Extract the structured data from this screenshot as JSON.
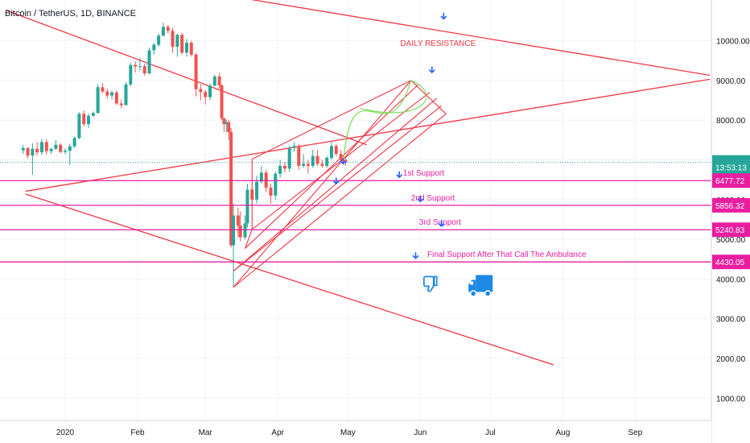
{
  "header": {
    "title": "Bitcoin / TetherUS, 1D, BINANCE"
  },
  "chart_data": {
    "type": "candlestick",
    "symbol": "Bitcoin / TetherUS",
    "interval": "1D",
    "exchange": "BINANCE",
    "y_axis": {
      "scale": "linear",
      "ticks": [
        1000,
        2000,
        3000,
        4000,
        5000,
        6000,
        7000,
        8000,
        9000,
        10000
      ],
      "tick_labels": [
        "1000.00",
        "2000.00",
        "3000.00",
        "4000.00",
        "5000.00",
        "6000.00",
        "7000.00",
        "8000.00",
        "9000.00",
        "10000.00"
      ]
    },
    "x_axis": {
      "ticks": [
        "2020-01-01",
        "2020-02-01",
        "2020-03-01",
        "2020-04-01",
        "2020-05-01",
        "2020-06-01",
        "2020-07-01",
        "2020-08-01",
        "2020-09-01"
      ],
      "tick_labels": [
        "2020",
        "Feb",
        "Mar",
        "Apr",
        "May",
        "Jun",
        "Jul",
        "Aug",
        "Sep"
      ]
    },
    "current_price": {
      "value": 6936.65,
      "label": "6936.65",
      "countdown": "13:53:13",
      "color": "#26a69a"
    },
    "candles": [
      [
        "2019-12-14",
        7240,
        7380,
        7150,
        7300
      ],
      [
        "2019-12-16",
        7300,
        7320,
        7040,
        7110
      ],
      [
        "2019-12-18",
        7110,
        7420,
        6620,
        7280
      ],
      [
        "2019-12-20",
        7280,
        7450,
        7110,
        7190
      ],
      [
        "2019-12-22",
        7190,
        7520,
        7120,
        7450
      ],
      [
        "2019-12-24",
        7450,
        7520,
        7130,
        7220
      ],
      [
        "2019-12-26",
        7220,
        7300,
        7150,
        7280
      ],
      [
        "2019-12-28",
        7280,
        7500,
        7250,
        7380
      ],
      [
        "2019-12-30",
        7380,
        7420,
        7170,
        7200
      ],
      [
        "2020-01-01",
        7200,
        7290,
        7140,
        7230
      ],
      [
        "2020-01-03",
        7230,
        7410,
        6870,
        7340
      ],
      [
        "2020-01-05",
        7340,
        7590,
        7300,
        7550
      ],
      [
        "2020-01-07",
        7550,
        8200,
        7520,
        8160
      ],
      [
        "2020-01-09",
        8160,
        8240,
        7840,
        7900
      ],
      [
        "2020-01-11",
        7900,
        8170,
        7800,
        8110
      ],
      [
        "2020-01-13",
        8110,
        8220,
        8080,
        8180
      ],
      [
        "2020-01-15",
        8180,
        8900,
        8170,
        8830
      ],
      [
        "2020-01-17",
        8830,
        8930,
        8680,
        8720
      ],
      [
        "2020-01-19",
        8720,
        8800,
        8540,
        8620
      ],
      [
        "2020-01-21",
        8620,
        8740,
        8520,
        8700
      ],
      [
        "2020-01-23",
        8700,
        8750,
        8380,
        8420
      ],
      [
        "2020-01-25",
        8420,
        8520,
        8300,
        8380
      ],
      [
        "2020-01-27",
        8380,
        8950,
        8370,
        8900
      ],
      [
        "2020-01-29",
        8900,
        9450,
        8850,
        9390
      ],
      [
        "2020-01-31",
        9390,
        9480,
        9200,
        9350
      ],
      [
        "2020-02-02",
        9350,
        9570,
        9250,
        9360
      ],
      [
        "2020-02-04",
        9360,
        9420,
        9120,
        9180
      ],
      [
        "2020-02-06",
        9180,
        9830,
        9150,
        9760
      ],
      [
        "2020-02-08",
        9760,
        9950,
        9650,
        9900
      ],
      [
        "2020-02-10",
        9900,
        10180,
        9850,
        10130
      ],
      [
        "2020-02-12",
        10130,
        10450,
        10100,
        10350
      ],
      [
        "2020-02-14",
        10350,
        10400,
        10180,
        10250
      ],
      [
        "2020-02-16",
        10250,
        10320,
        9700,
        9850
      ],
      [
        "2020-02-18",
        9850,
        10180,
        9600,
        10150
      ],
      [
        "2020-02-20",
        10150,
        10200,
        9650,
        9700
      ],
      [
        "2020-02-22",
        9700,
        10050,
        9600,
        9950
      ],
      [
        "2020-02-24",
        9950,
        10000,
        9600,
        9650
      ],
      [
        "2020-02-26",
        9650,
        9700,
        8600,
        8780
      ],
      [
        "2020-02-28",
        8780,
        8900,
        8500,
        8710
      ],
      [
        "2020-03-01",
        8710,
        8760,
        8400,
        8580
      ],
      [
        "2020-03-03",
        8580,
        8920,
        8500,
        8870
      ],
      [
        "2020-03-05",
        8870,
        9150,
        8850,
        9100
      ],
      [
        "2020-03-07",
        9100,
        9190,
        8800,
        8880
      ],
      [
        "2020-03-08",
        8880,
        8900,
        8000,
        8050
      ],
      [
        "2020-03-09",
        8050,
        8060,
        7700,
        7900
      ],
      [
        "2020-03-10",
        7900,
        8000,
        7700,
        7950
      ],
      [
        "2020-03-11",
        7950,
        8000,
        7500,
        7700
      ],
      [
        "2020-03-12",
        7700,
        7800,
        4800,
        4850
      ],
      [
        "2020-03-13",
        4850,
        5900,
        3800,
        5600
      ],
      [
        "2020-03-15",
        5600,
        5800,
        5050,
        5350
      ],
      [
        "2020-03-16",
        5350,
        5700,
        4950,
        5050
      ],
      [
        "2020-03-18",
        5050,
        5600,
        5000,
        5400
      ],
      [
        "2020-03-19",
        5400,
        6400,
        5300,
        6250
      ],
      [
        "2020-03-21",
        6250,
        6400,
        5800,
        6000
      ],
      [
        "2020-03-23",
        6000,
        6600,
        5900,
        6450
      ],
      [
        "2020-03-25",
        6450,
        6850,
        6400,
        6680
      ],
      [
        "2020-03-27",
        6680,
        6750,
        6200,
        6300
      ],
      [
        "2020-03-29",
        6300,
        6400,
        5900,
        6100
      ],
      [
        "2020-03-31",
        6100,
        6700,
        6000,
        6650
      ],
      [
        "2020-04-02",
        6650,
        7000,
        6550,
        6850
      ],
      [
        "2020-04-04",
        6850,
        6950,
        6680,
        6780
      ],
      [
        "2020-04-06",
        6780,
        7350,
        6700,
        7300
      ],
      [
        "2020-04-08",
        7300,
        7450,
        7200,
        7350
      ],
      [
        "2020-04-10",
        7350,
        7400,
        6750,
        6850
      ],
      [
        "2020-04-12",
        6850,
        7150,
        6800,
        6900
      ],
      [
        "2020-04-14",
        6900,
        7000,
        6650,
        6850
      ],
      [
        "2020-04-16",
        6850,
        7250,
        6800,
        7100
      ],
      [
        "2020-04-18",
        7100,
        7250,
        6850,
        6900
      ],
      [
        "2020-04-20",
        6900,
        7000,
        6800,
        6850
      ],
      [
        "2020-04-22",
        6850,
        7100,
        6800,
        7050
      ],
      [
        "2020-04-24",
        7050,
        7450,
        7000,
        7350
      ],
      [
        "2020-04-26",
        7350,
        7400,
        7100,
        7150
      ],
      [
        "2020-04-28",
        7150,
        7250,
        6950,
        7000
      ],
      [
        "2020-04-30",
        7000,
        7050,
        6850,
        6936.65
      ]
    ],
    "lines": {
      "color": "#f23645",
      "trendlines": [
        [
          [
            "2019-12-07",
            10760
          ],
          [
            "2020-05-09",
            7380
          ]
        ],
        [
          [
            "2019-12-28",
            11850
          ],
          [
            "2020-10-03",
            9130
          ]
        ],
        [
          [
            "2019-12-15",
            6210
          ],
          [
            "2020-10-03",
            9030
          ]
        ],
        [
          [
            "2019-12-15",
            6140
          ],
          [
            "2020-07-28",
            1840
          ]
        ]
      ],
      "channels": [
        [
          [
            "2020-03-13",
            3790
          ],
          [
            "2020-05-28",
            9000
          ]
        ],
        [
          [
            "2020-03-18",
            4770
          ],
          [
            "2020-05-31",
            8890
          ]
        ],
        [
          [
            "2020-03-21",
            5250
          ],
          [
            "2020-06-05",
            8700
          ]
        ],
        [
          [
            "2020-03-13",
            4200
          ],
          [
            "2020-06-08",
            8550
          ]
        ],
        [
          [
            "2020-03-13",
            4200
          ],
          [
            "2020-06-10",
            8360
          ]
        ],
        [
          [
            "2020-03-13",
            3790
          ],
          [
            "2020-06-12",
            8160
          ]
        ]
      ]
    },
    "support_levels": [
      {
        "value": 6477.72,
        "label": "1st Support",
        "price_label": "6477.72"
      },
      {
        "value": 5856.32,
        "label": "2nd Support",
        "price_label": "5856.32"
      },
      {
        "value": 5240.83,
        "label": "3rd Support",
        "price_label": "5240.83"
      },
      {
        "value": 4430.05,
        "label": "Final Support After That Call The Ambulance",
        "price_label": "4430.05"
      }
    ],
    "support_color": "#e91e9f",
    "annotations": {
      "resistance_label": "DAILY RESISTANCE"
    }
  },
  "icons": {
    "thumbs_down": "thumbs-down-icon",
    "truck": "ambulance-truck-icon",
    "arrow": "arrow-down-icon"
  },
  "colors": {
    "up": "#26a69a",
    "down": "#ef5350",
    "arrow": "#2962ff"
  }
}
